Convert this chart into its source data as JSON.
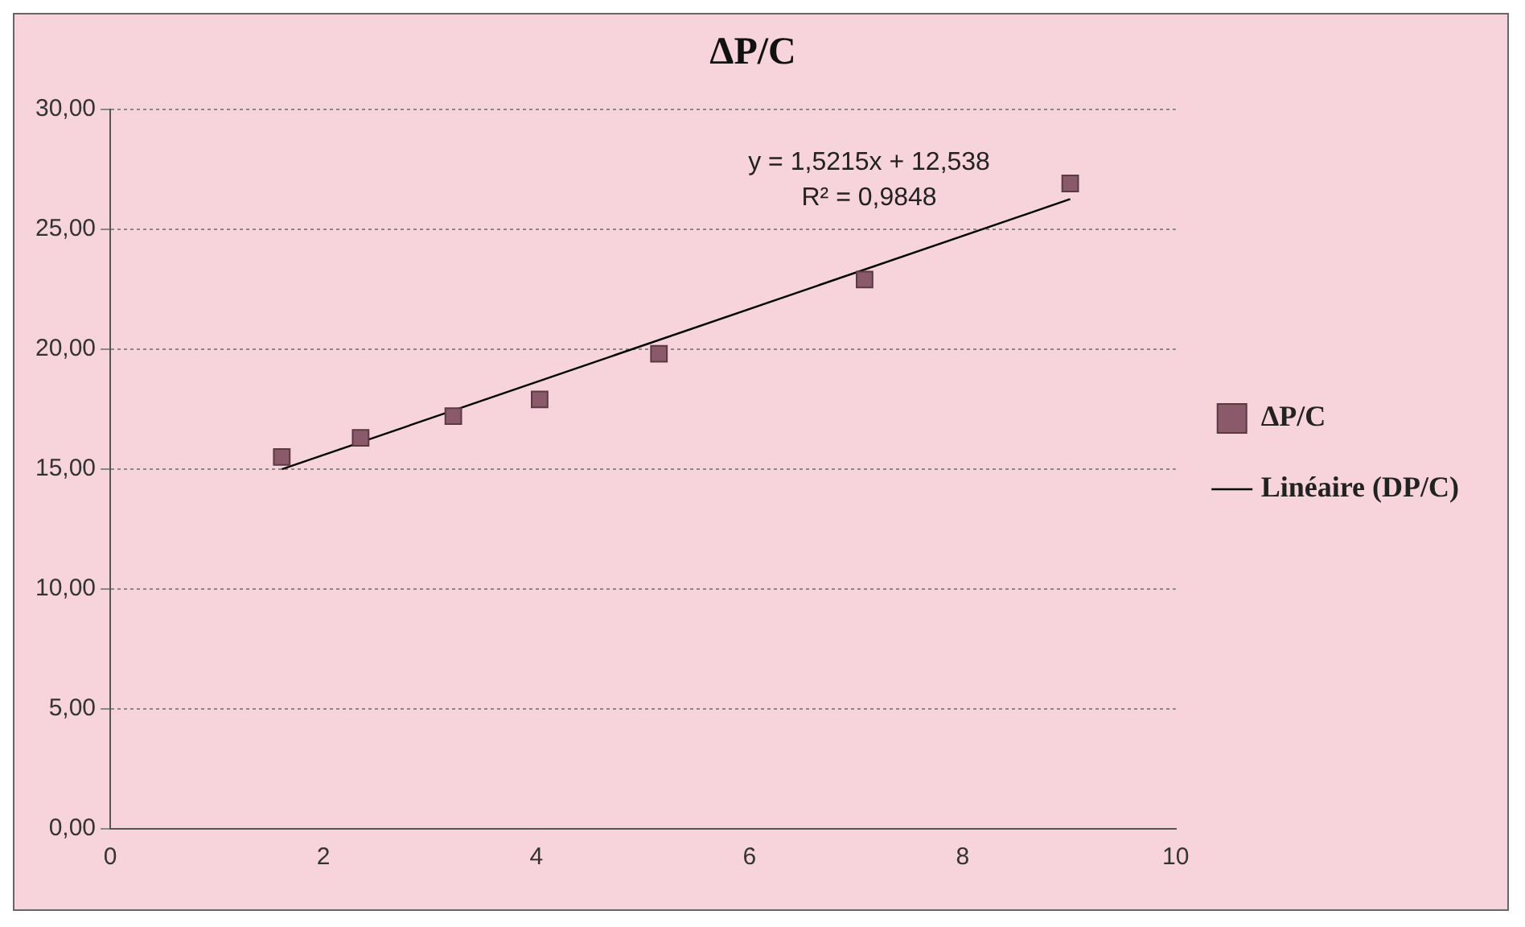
{
  "chart_data": {
    "type": "scatter",
    "title": "ΔP/C",
    "x": [
      1.61,
      2.35,
      3.22,
      4.03,
      5.15,
      7.08,
      9.01
    ],
    "series": [
      {
        "name": "ΔP/C",
        "type": "scatter",
        "color": "#8a5a6a",
        "marker": "square",
        "values": [
          15.5,
          16.3,
          17.2,
          17.9,
          19.8,
          22.9,
          26.9
        ]
      },
      {
        "name": "Linéaire (DP/C)",
        "type": "line",
        "color": "#000000",
        "marker": "none",
        "x": [
          1.61,
          9.01
        ],
        "values": [
          14.99,
          26.25
        ]
      }
    ],
    "xlim": [
      0,
      10
    ],
    "xticks": [
      0,
      2,
      4,
      6,
      8,
      10
    ],
    "ylim": [
      0,
      30
    ],
    "yticks": [
      {
        "value": 0,
        "label": "0,00"
      },
      {
        "value": 5,
        "label": "5,00"
      },
      {
        "value": 10,
        "label": "10,00"
      },
      {
        "value": 15,
        "label": "15,00"
      },
      {
        "value": 20,
        "label": "20,00"
      },
      {
        "value": 25,
        "label": "25,00"
      },
      {
        "value": 30,
        "label": "30,00"
      }
    ],
    "grid": "y",
    "legend": "right",
    "annotations": [
      "y = 1,5215x + 12,538",
      "R² = 0,9848"
    ]
  }
}
